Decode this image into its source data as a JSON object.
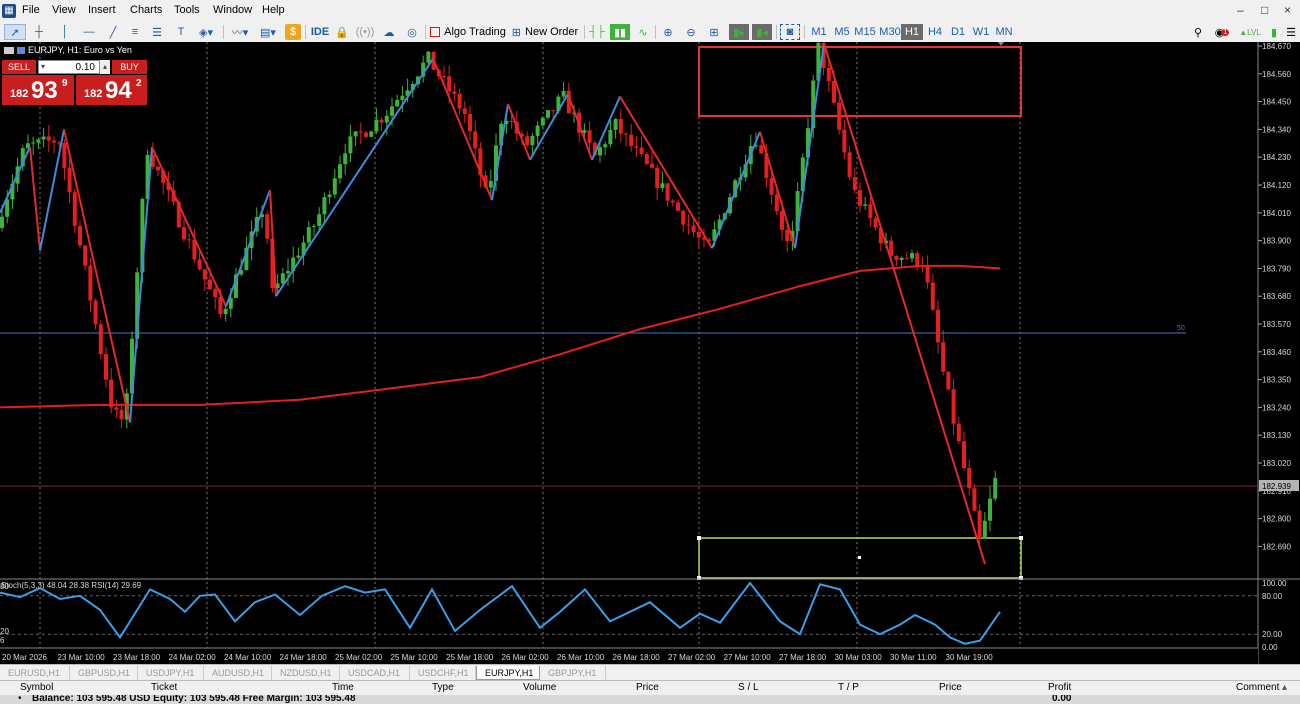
{
  "menu": [
    "File",
    "View",
    "Insert",
    "Charts",
    "Tools",
    "Window",
    "Help"
  ],
  "window_controls": [
    "–",
    "□",
    "×"
  ],
  "toolbar": {
    "ide": "IDE",
    "algo_trading": "Algo Trading",
    "new_order": "New Order",
    "timeframes": [
      "M1",
      "M5",
      "M15",
      "M30",
      "H1",
      "H4",
      "D1",
      "W1",
      "MN"
    ],
    "active_timeframe": "H1",
    "notification_count": "1"
  },
  "chart": {
    "symbol_title": "EURJPY, H1:  Euro vs Yen",
    "trade_panel": {
      "sell_label": "SELL",
      "buy_label": "BUY",
      "lot": "0.10",
      "sell_prefix": "182",
      "sell_big": "93",
      "sell_sup": "9",
      "buy_prefix": "182",
      "buy_big": "94",
      "buy_sup": "2"
    },
    "price_axis": [
      "184.670",
      "184.560",
      "184.450",
      "184.340",
      "184.230",
      "184.120",
      "184.010",
      "183.900",
      "183.790",
      "183.680",
      "183.570",
      "183.460",
      "183.350",
      "183.240",
      "183.130",
      "183.020",
      "182.910",
      "182.800",
      "182.690"
    ],
    "current_price": "182.939",
    "level_50_label": "50",
    "indicator_label": "Stoch(5,3,3) 48.04 28.38 RSI(14) 29.69",
    "indicator_axis": [
      "100.00",
      "80.00",
      "20.00",
      "0.00"
    ],
    "indicator_left_labels": [
      "80",
      "20",
      "6"
    ],
    "time_axis": [
      "20 Mar 2026",
      "23 Mar 10:00",
      "23 Mar 18:00",
      "24 Mar 02:00",
      "24 Mar 10:00",
      "24 Mar 18:00",
      "25 Mar 02:00",
      "25 Mar 10:00",
      "25 Mar 18:00",
      "26 Mar 02:00",
      "26 Mar 10:00",
      "26 Mar 18:00",
      "27 Mar 02:00",
      "27 Mar 10:00",
      "27 Mar 18:00",
      "30 Mar 03:00",
      "30 Mar 11:00",
      "30 Mar 19:00"
    ],
    "colors": {
      "bull": "#3cb43c",
      "bear": "#e61e1e",
      "ma": "#e61e1e",
      "zz_up": "#3c8cdc",
      "zz_down": "#e62828",
      "stoch": "#3c9ee6",
      "zone_top": "#e63232",
      "zone_bottom": "#b4dc64"
    }
  },
  "tabs": [
    "EURUSD,H1",
    "GBPUSD,H1",
    "USDJPY,H1",
    "AUDUSD,H1",
    "NZDUSD,H1",
    "USDCAD,H1",
    "USDCHF,H1",
    "EURJPY,H1",
    "GBPJPY,H1"
  ],
  "active_tab": "EURJPY,H1",
  "terminal": {
    "headers": [
      "Symbol",
      "Ticket",
      "Time",
      "Type",
      "Volume",
      "Price",
      "S / L",
      "T / P",
      "Price",
      "Profit",
      "Comment"
    ],
    "balance": "Balance: 103 595.48 USD  Equity: 103 595.48  Free Margin: 103 595.48",
    "profit": "0.00"
  }
}
